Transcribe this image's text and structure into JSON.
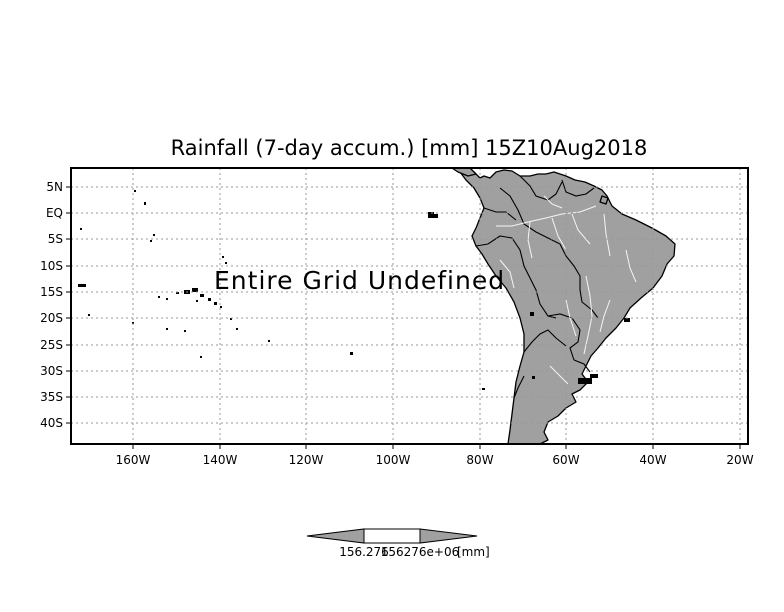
{
  "map": {
    "title": "Rainfall (7-day accum.) [mm] 15Z10Aug2018",
    "no_data_message": "Entire Grid Undefined",
    "lat_ticks": [
      "5N",
      "EQ",
      "5S",
      "10S",
      "15S",
      "20S",
      "25S",
      "30S",
      "35S",
      "40S"
    ],
    "lon_ticks": [
      "160W",
      "140W",
      "120W",
      "100W",
      "80W",
      "60W",
      "40W",
      "20W"
    ],
    "lon_range": [
      "175W",
      "19W"
    ],
    "lat_range": [
      "8N",
      "44S"
    ],
    "gridlines": true,
    "land_color": "#a0a0a0",
    "coast_color": "#000000",
    "river_color": "#ffffff"
  },
  "colorbar": {
    "label_left": "156.276",
    "label_mid": "156276e+06",
    "units": "[mm]",
    "fill_color": "#a0a0a0"
  }
}
